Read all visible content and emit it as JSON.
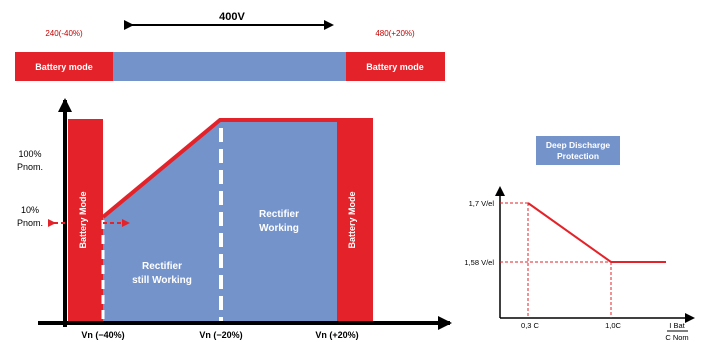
{
  "top_bar": {
    "voltage_label": "400V",
    "left_limit": "240(-40%)",
    "right_limit": "480(+20%)",
    "left_mode": "Battery mode",
    "right_mode": "Battery mode"
  },
  "main_chart": {
    "y_label_100": "100%",
    "y_label_100_unit": "Pnom.",
    "y_label_10": "10%",
    "y_label_10_unit": "Pnom.",
    "left_region": "Battery Mode",
    "right_region": "Battery Mode",
    "region_still_line1": "Rectifier",
    "region_still_line2": "still Working",
    "region_working_line1": "Rectifier",
    "region_working_line2": "Working",
    "x_ticks": [
      "Vn (−40%)",
      "Vn (−20%)",
      "Vn (+20%)"
    ]
  },
  "discharge_chart": {
    "title_line1": "Deep Discharge",
    "title_line2": "Protection",
    "y_high": "1,7 V/el",
    "y_low": "1,58 V/el",
    "x_ticks": [
      "0,3 C",
      "1,0C"
    ],
    "x_axis_top": "I Bat",
    "x_axis_bottom": "C Nom"
  },
  "colors": {
    "red": "#e32329",
    "blue": "#7493cb",
    "black": "#000000",
    "dark_red_text": "#c00000"
  }
}
